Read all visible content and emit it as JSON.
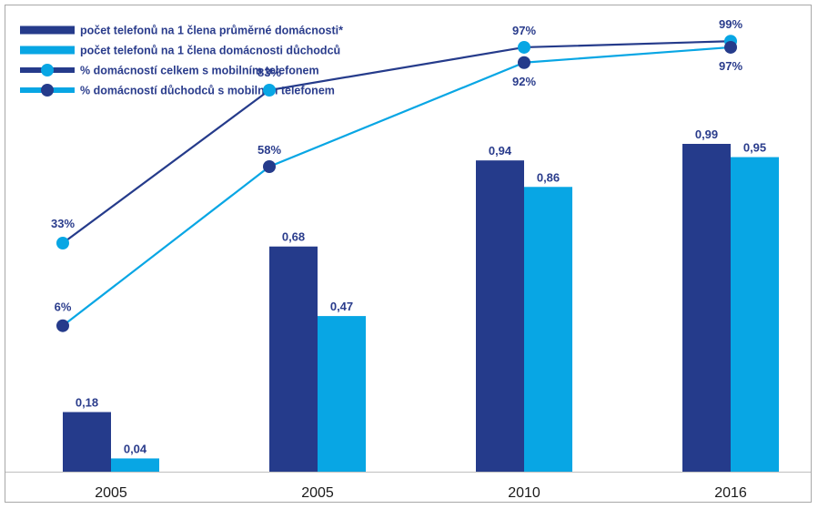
{
  "colors": {
    "dark": "#253b8b",
    "light": "#08a6e4",
    "label": "#2a3c8c",
    "axis": "#bfbfbf"
  },
  "legend": [
    {
      "text": "počet telefonů na 1 člena průměrné domácnosti*",
      "kind": "bar",
      "color": "#253b8b"
    },
    {
      "text": "počet telefonů na 1 člena domácnosti důchodců",
      "kind": "bar",
      "color": "#08a6e4"
    },
    {
      "text": "% domácností celkem s mobilním telefonem",
      "kind": "line",
      "line_color": "#253b8b",
      "marker_color": "#08a6e4"
    },
    {
      "text": "% domácností důchodců s mobilním telefonem",
      "kind": "line",
      "line_color": "#08a6e4",
      "marker_color": "#253b8b"
    }
  ],
  "chart_data": {
    "type": "bar",
    "categories": [
      "2005",
      "2005",
      "2010",
      "2016"
    ],
    "series": [
      {
        "name": "počet telefonů na 1 člena průměrné domácnosti*",
        "type": "bar",
        "values": [
          0.18,
          0.68,
          0.94,
          0.99
        ],
        "labels": [
          "0,18",
          "0,68",
          "0,94",
          "0,99"
        ],
        "color": "#253b8b"
      },
      {
        "name": "počet telefonů na 1 člena domácnosti důchodců",
        "type": "bar",
        "values": [
          0.04,
          0.47,
          0.86,
          0.95
        ],
        "labels": [
          "0,04",
          "0,47",
          "0,86",
          "0,95"
        ],
        "color": "#08a6e4"
      },
      {
        "name": "% domácností celkem s mobilním telefonem",
        "type": "line",
        "values": [
          33,
          83,
          97,
          99
        ],
        "labels": [
          "33%",
          "83%",
          "97%",
          "99%"
        ],
        "line_color": "#253b8b",
        "marker_color": "#08a6e4"
      },
      {
        "name": "% domácností důchodců s mobilním telefonem",
        "type": "line",
        "values": [
          6,
          58,
          92,
          97
        ],
        "labels": [
          "6%",
          "58%",
          "92%",
          "97%"
        ],
        "line_color": "#08a6e4",
        "marker_color": "#253b8b"
      }
    ],
    "bar_ylim": [
      0,
      1.2
    ],
    "line_ylim": [
      -40,
      115
    ],
    "grid": false,
    "legend_position": "top-left"
  }
}
